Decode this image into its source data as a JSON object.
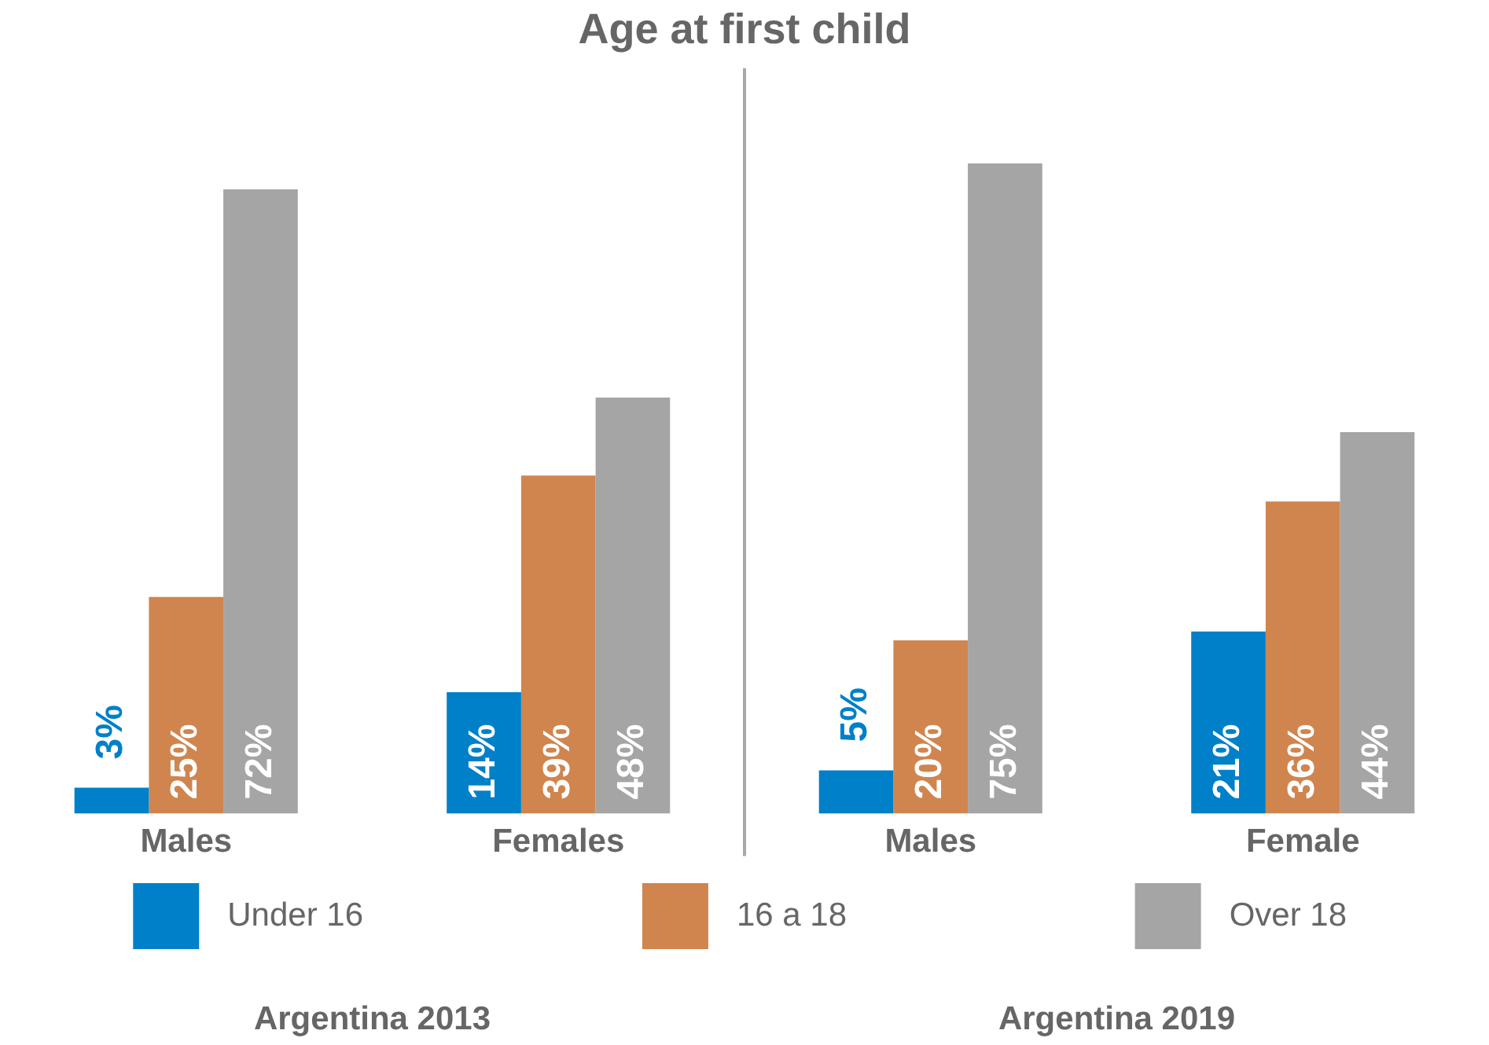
{
  "chart_data": {
    "type": "bar",
    "title": "Age at first child",
    "categories": [
      "Males",
      "Females",
      "Males",
      "Female"
    ],
    "series": [
      {
        "name": "Under 16",
        "color": "#0080c8",
        "values": [
          3,
          14,
          5,
          21
        ],
        "value_labels": [
          "3%",
          "14%",
          "5%",
          "21%"
        ]
      },
      {
        "name": "16 a 18",
        "color": "#d0854f",
        "values": [
          25,
          39,
          20,
          36
        ],
        "value_labels": [
          "25%",
          "39%",
          "20%",
          "36%"
        ]
      },
      {
        "name": "Over 18",
        "color": "#a5a5a5",
        "values": [
          72,
          48,
          75,
          44
        ],
        "value_labels": [
          "72%",
          "48%",
          "75%",
          "44%"
        ]
      }
    ],
    "legend": "bottom",
    "tick_labels": "x",
    "annotations": [
      "Argentina 2013",
      "Argentina 2019"
    ]
  }
}
